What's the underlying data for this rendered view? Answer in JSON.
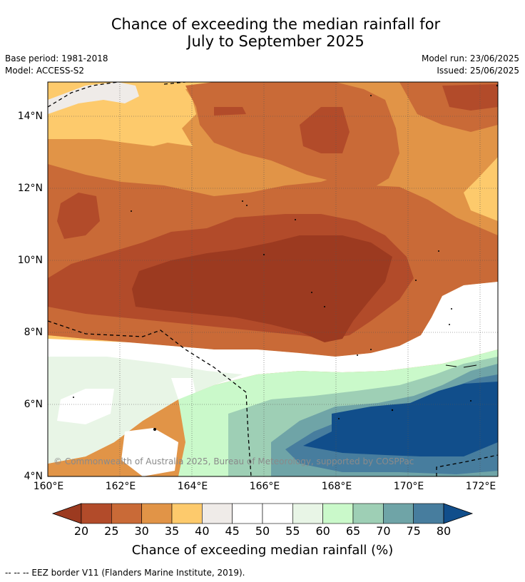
{
  "title_line1": "Chance of exceeding the median rainfall for",
  "title_line2": "July to September 2025",
  "meta": {
    "base_period": "Base period: 1981-2018",
    "model": "Model: ACCESS-S2",
    "model_run": "Model run: 23/06/2025",
    "issued": "Issued: 25/06/2025"
  },
  "copyright": "© Commonwealth of Australia 2025, Bureau of Meteorology, supported by COSPPac",
  "axes": {
    "lat_labels": [
      "14°N",
      "12°N",
      "10°N",
      "8°N",
      "6°N",
      "4°N"
    ],
    "lon_labels": [
      "160°E",
      "162°E",
      "164°E",
      "166°E",
      "168°E",
      "170°E",
      "172°E"
    ]
  },
  "colorbar": {
    "label": "Chance of exceeding median rainfall (%)",
    "ticks": [
      "20",
      "25",
      "30",
      "35",
      "40",
      "45",
      "50",
      "55",
      "60",
      "65",
      "70",
      "75",
      "80"
    ],
    "colors": [
      "#9c3a20",
      "#b24b2a",
      "#c96a37",
      "#e19447",
      "#fdca6c",
      "#efebe8",
      "#ffffff",
      "#ffffff",
      "#e8f5e6",
      "#caf9ca",
      "#9ecfb5",
      "#6fa4a7",
      "#477d9e",
      "#114e8b"
    ]
  },
  "footer": "-- -- -- EEZ border V11 (Flanders Marine Institute, 2019)."
}
